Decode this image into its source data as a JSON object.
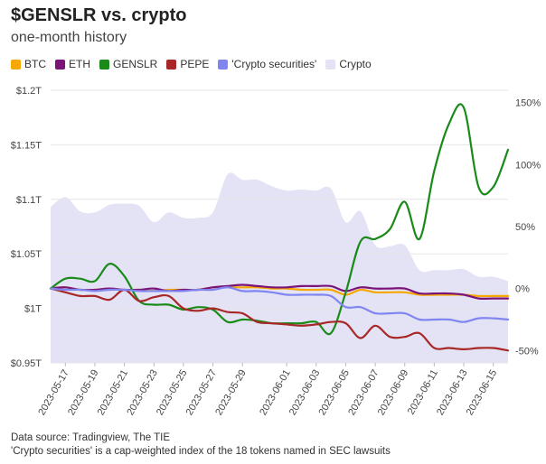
{
  "header": {
    "title": "$GENSLR vs. crypto",
    "subtitle": "one-month history"
  },
  "footer": {
    "source": "Data source: Tradingview, The TIE",
    "note": "'Crypto securities' is a cap-weighted index of the 18 tokens named in SEC lawsuits"
  },
  "chart_data": {
    "type": "line",
    "left_axis": {
      "label": "",
      "ticks": [
        "$0.95T",
        "$1T",
        "$1.05T",
        "$1.1T",
        "$1.15T",
        "$1.2T"
      ],
      "tick_values": [
        0.95,
        1.0,
        1.05,
        1.1,
        1.15,
        1.2
      ],
      "range": [
        0.95,
        1.2
      ]
    },
    "right_axis": {
      "label": "",
      "ticks": [
        "-50%",
        "0%",
        "50%",
        "100%",
        "150%"
      ],
      "tick_values": [
        -50,
        0,
        50,
        100,
        150
      ],
      "range": [
        -60,
        160
      ]
    },
    "x_axis": {
      "ticks": [
        "2023-05-17",
        "2023-05-19",
        "2023-05-21",
        "2023-05-23",
        "2023-05-25",
        "2023-05-27",
        "2023-05-29",
        "2023-06-01",
        "2023-06-03",
        "2023-06-05",
        "2023-06-07",
        "2023-06-09",
        "2023-06-11",
        "2023-06-13",
        "2023-06-15"
      ],
      "range": [
        "2023-05-16",
        "2023-06-16"
      ]
    },
    "grid": "horizontal",
    "legend_position": "top-left",
    "x": [
      "2023-05-16",
      "2023-05-17",
      "2023-05-18",
      "2023-05-19",
      "2023-05-20",
      "2023-05-21",
      "2023-05-22",
      "2023-05-23",
      "2023-05-24",
      "2023-05-25",
      "2023-05-26",
      "2023-05-27",
      "2023-05-28",
      "2023-05-29",
      "2023-05-30",
      "2023-05-31",
      "2023-06-01",
      "2023-06-02",
      "2023-06-03",
      "2023-06-04",
      "2023-06-05",
      "2023-06-06",
      "2023-06-07",
      "2023-06-08",
      "2023-06-09",
      "2023-06-10",
      "2023-06-11",
      "2023-06-12",
      "2023-06-13",
      "2023-06-14",
      "2023-06-15",
      "2023-06-16"
    ],
    "series": [
      {
        "name": "BTC",
        "color": "#f5a800",
        "axis": "right",
        "type": "line",
        "values": [
          0,
          1,
          -1,
          -1,
          0,
          -1,
          -1,
          -2,
          -1,
          -1,
          -1,
          1,
          1,
          1,
          1,
          0,
          0,
          -1,
          -1,
          -1,
          -5,
          -1,
          -3,
          -3,
          -3,
          -5,
          -5,
          -5,
          -5,
          -6,
          -6,
          -6
        ]
      },
      {
        "name": "ETH",
        "color": "#7a1478",
        "axis": "right",
        "type": "line",
        "values": [
          0,
          1,
          -1,
          -1,
          0,
          -1,
          -1,
          0,
          -2,
          -1,
          -1,
          1,
          2,
          3,
          2,
          1,
          1,
          2,
          2,
          2,
          -2,
          1,
          0,
          0,
          0,
          -4,
          -4,
          -4,
          -5,
          -8,
          -8,
          -8
        ]
      },
      {
        "name": "GENSLR",
        "color": "#1a8a1a",
        "axis": "right",
        "type": "line",
        "values": [
          0,
          8,
          8,
          6,
          20,
          10,
          -10,
          -13,
          -13,
          -17,
          -15,
          -17,
          -27,
          -25,
          -26,
          -28,
          -28,
          -28,
          -27,
          -36,
          -3,
          38,
          40,
          48,
          70,
          40,
          95,
          133,
          146,
          82,
          82,
          112
        ]
      },
      {
        "name": "PEPE",
        "color": "#a82828",
        "axis": "right",
        "type": "line",
        "values": [
          0,
          -3,
          -6,
          -6,
          -9,
          -1,
          -10,
          -7,
          -6,
          -16,
          -18,
          -16,
          -19,
          -20,
          -27,
          -28,
          -29,
          -30,
          -29,
          -27,
          -28,
          -40,
          -30,
          -39,
          -39,
          -36,
          -48,
          -48,
          -49,
          -48,
          -48,
          -50
        ]
      },
      {
        "name": "'Crypto securities'",
        "color": "#7f86f0",
        "axis": "right",
        "type": "line",
        "values": [
          0,
          -1,
          -1,
          -2,
          -1,
          -1,
          -2,
          -2,
          -2,
          -2,
          -1,
          -1,
          1,
          -2,
          -2,
          -3,
          -5,
          -5,
          -5,
          -6,
          -15,
          -15,
          -20,
          -20,
          -20,
          -25,
          -25,
          -25,
          -27,
          -24,
          -24,
          -25
        ]
      },
      {
        "name": "Crypto",
        "color": "#e4e3f6",
        "axis": "left",
        "type": "area",
        "values": [
          1.093,
          1.102,
          1.089,
          1.088,
          1.095,
          1.096,
          1.094,
          1.079,
          1.088,
          1.083,
          1.083,
          1.088,
          1.123,
          1.118,
          1.118,
          1.112,
          1.108,
          1.109,
          1.108,
          1.11,
          1.079,
          1.089,
          1.058,
          1.057,
          1.058,
          1.035,
          1.035,
          1.035,
          1.036,
          1.029,
          1.029,
          1.025
        ]
      }
    ]
  },
  "legend": [
    {
      "label": "BTC",
      "color": "#f5a800"
    },
    {
      "label": "ETH",
      "color": "#7a1478"
    },
    {
      "label": "GENSLR",
      "color": "#1a8a1a"
    },
    {
      "label": "PEPE",
      "color": "#a82828"
    },
    {
      "label": "'Crypto securities'",
      "color": "#7f86f0"
    },
    {
      "label": "Crypto",
      "color": "#e4e3f6"
    }
  ]
}
